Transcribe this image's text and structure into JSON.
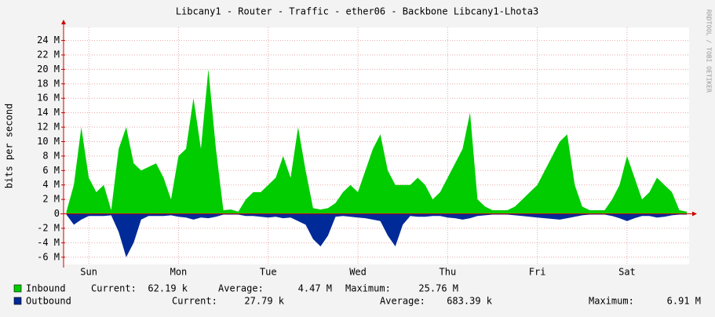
{
  "chart_data": {
    "type": "area",
    "title": "Libcany1 - Router - Traffic - ether06 - Backbone Libcany1-Lhota3",
    "y_label": "bits per second",
    "watermark": "RRDTOOL / TOBI OETIKER",
    "xlim": [
      5.25,
      172.6
    ],
    "xticks": [
      {
        "value": 12,
        "label": "Sun"
      },
      {
        "value": 36,
        "label": "Mon"
      },
      {
        "value": 60,
        "label": "Tue"
      },
      {
        "value": 84,
        "label": "Wed"
      },
      {
        "value": 108,
        "label": "Thu"
      },
      {
        "value": 132,
        "label": "Fri"
      },
      {
        "value": 156,
        "label": "Sat"
      }
    ],
    "ylim": [
      -7,
      25.8
    ],
    "yticks": [
      {
        "value": -6,
        "label": "-6 M"
      },
      {
        "value": -4,
        "label": "-4 M"
      },
      {
        "value": -2,
        "label": "-2 M"
      },
      0,
      {
        "value": 2,
        "label": "2 M"
      },
      {
        "value": 4,
        "label": "4 M"
      },
      {
        "value": 6,
        "label": "6 M"
      },
      {
        "value": 8,
        "label": "8 M"
      },
      {
        "value": 10,
        "label": "10 M"
      },
      {
        "value": 12,
        "label": "12 M"
      },
      {
        "value": 14,
        "label": "14 M"
      },
      {
        "value": 16,
        "label": "16 M"
      },
      {
        "value": 18,
        "label": "18 M"
      },
      {
        "value": 20,
        "label": "20 M"
      },
      {
        "value": 22,
        "label": "22 M"
      },
      {
        "value": 24,
        "label": "24 M"
      }
    ],
    "grid": true,
    "x": [
      6,
      8,
      10,
      12,
      14,
      16,
      18,
      20,
      22,
      24,
      26,
      28,
      30,
      32,
      34,
      36,
      38,
      40,
      42,
      44,
      46,
      48,
      50,
      52,
      54,
      56,
      58,
      60,
      62,
      64,
      66,
      68,
      70,
      72,
      74,
      76,
      78,
      80,
      82,
      84,
      86,
      88,
      90,
      92,
      94,
      96,
      98,
      100,
      102,
      104,
      106,
      108,
      110,
      112,
      114,
      116,
      118,
      120,
      122,
      124,
      126,
      128,
      130,
      132,
      134,
      136,
      138,
      140,
      142,
      144,
      146,
      148,
      150,
      152,
      154,
      156,
      158,
      160,
      162,
      164,
      166,
      168,
      170,
      172
    ],
    "series": [
      {
        "name": "Inbound",
        "color": "#00cc00",
        "values": [
          0.3,
          4,
          12,
          5,
          3,
          4,
          0.5,
          9,
          12,
          7,
          6,
          6.5,
          7,
          5,
          2,
          8,
          9,
          16,
          9,
          20,
          9,
          0.5,
          0.6,
          0.3,
          2,
          3,
          3,
          4,
          5,
          8,
          5,
          12,
          6,
          0.8,
          0.6,
          0.8,
          1.5,
          3,
          4,
          3,
          6,
          9,
          11,
          6,
          4,
          4,
          4,
          5,
          4,
          2,
          3,
          5,
          7,
          9,
          14,
          2,
          1,
          0.5,
          0.5,
          0.5,
          1,
          2,
          3,
          4,
          6,
          8,
          10,
          11,
          4,
          1,
          0.5,
          0.5,
          0.5,
          2,
          4,
          8,
          5,
          2,
          3,
          5,
          4,
          3,
          0.5,
          0.3
        ],
        "stats": [
          {
            "label": "Current:",
            "value": "62.19 k"
          },
          {
            "label": "Average:",
            "value": "4.47 M"
          },
          {
            "label": "Maximum:",
            "value": "25.76 M"
          }
        ]
      },
      {
        "name": "Outbound",
        "color": "#002a97",
        "values": [
          -0.1,
          -1.5,
          -0.8,
          -0.3,
          -0.3,
          -0.3,
          -0.2,
          -2.5,
          -6,
          -4,
          -0.8,
          -0.3,
          -0.3,
          -0.3,
          -0.2,
          -0.4,
          -0.5,
          -0.8,
          -0.5,
          -0.6,
          -0.4,
          -0.1,
          -0.1,
          -0.1,
          -0.3,
          -0.3,
          -0.4,
          -0.5,
          -0.4,
          -0.6,
          -0.5,
          -1,
          -1.5,
          -3.5,
          -4.5,
          -3,
          -0.4,
          -0.3,
          -0.4,
          -0.5,
          -0.6,
          -0.8,
          -1,
          -3,
          -4.5,
          -1.5,
          -0.3,
          -0.4,
          -0.4,
          -0.3,
          -0.3,
          -0.5,
          -0.6,
          -0.8,
          -0.6,
          -0.3,
          -0.2,
          -0.1,
          -0.1,
          -0.1,
          -0.2,
          -0.3,
          -0.4,
          -0.5,
          -0.6,
          -0.7,
          -0.8,
          -0.6,
          -0.4,
          -0.2,
          -0.1,
          -0.1,
          -0.1,
          -0.3,
          -0.6,
          -1,
          -0.6,
          -0.3,
          -0.3,
          -0.5,
          -0.4,
          -0.2,
          -0.1,
          -0.1
        ],
        "stats": [
          {
            "label": "Current:",
            "value": "27.79 k"
          },
          {
            "label": "Average:",
            "value": "683.39 k"
          },
          {
            "label": "Maximum:",
            "value": "6.91 M"
          }
        ]
      }
    ]
  }
}
